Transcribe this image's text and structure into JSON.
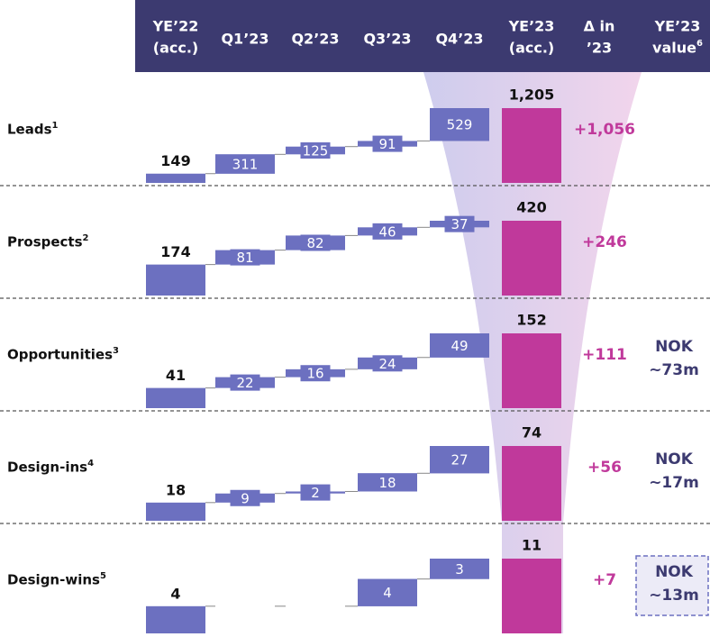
{
  "header": {
    "columns": [
      {
        "lines": [
          "YE’22",
          "(acc.)"
        ]
      },
      {
        "lines": [
          "Q1’23"
        ]
      },
      {
        "lines": [
          "Q2’23"
        ]
      },
      {
        "lines": [
          "Q3’23"
        ]
      },
      {
        "lines": [
          "Q4’23"
        ]
      },
      {
        "lines": [
          "YE’23",
          "(acc.)"
        ]
      },
      {
        "lines": [
          "Δ in",
          "’23"
        ]
      },
      {
        "lines": [
          "YE’23",
          "value"
        ],
        "note": "6"
      }
    ]
  },
  "rows": [
    {
      "label": "Leads",
      "note": "1",
      "values": [
        149,
        311,
        125,
        91,
        529,
        1205
      ],
      "value_labels": [
        "149",
        "311",
        "125",
        "91",
        "529",
        "1,205"
      ],
      "delta": "+1,056"
    },
    {
      "label": "Prospects",
      "note": "2",
      "values": [
        174,
        81,
        82,
        46,
        37,
        420
      ],
      "value_labels": [
        "174",
        "81",
        "82",
        "46",
        "37",
        "420"
      ],
      "delta": "+246"
    },
    {
      "label": "Opportunities",
      "note": "3",
      "values": [
        41,
        22,
        16,
        24,
        49,
        152
      ],
      "value_labels": [
        "41",
        "22",
        "16",
        "24",
        "49",
        "152"
      ],
      "delta": "+111",
      "value": [
        "NOK",
        "~73m"
      ]
    },
    {
      "label": "Design-ins",
      "note": "4",
      "values": [
        18,
        9,
        2,
        18,
        27,
        74
      ],
      "value_labels": [
        "18",
        "9",
        "2",
        "18",
        "27",
        "74"
      ],
      "delta": "+56",
      "value": [
        "NOK",
        "~17m"
      ]
    },
    {
      "label": "Design-wins",
      "note": "5",
      "values": [
        4,
        0,
        0,
        4,
        3,
        11
      ],
      "value_labels": [
        "4",
        null,
        null,
        "4",
        "3",
        "11"
      ],
      "delta": "+7",
      "value": [
        "NOK",
        "~13m"
      ],
      "value_boxed": true
    }
  ]
}
